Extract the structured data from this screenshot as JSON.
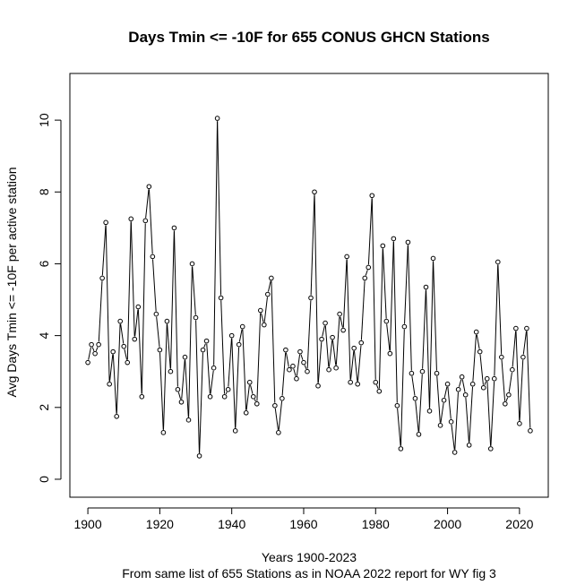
{
  "chart_data": {
    "type": "line",
    "title": "Days Tmin <= -10F for 655 CONUS GHCN Stations",
    "xlabel": "Years 1900-2023",
    "subtitle": "From same list of 655 Stations as in NOAA 2022 report for WY fig 3",
    "ylabel": "Avg Days Tmin <= -10F per active station",
    "xlim": [
      1895,
      2028
    ],
    "ylim": [
      -0.5,
      11.3
    ],
    "x_ticks": [
      1900,
      1920,
      1940,
      1960,
      1980,
      2000,
      2020
    ],
    "y_ticks": [
      0,
      2,
      4,
      6,
      8,
      10
    ],
    "x_tick_labels": [
      "1900",
      "1920",
      "1940",
      "1960",
      "1980",
      "2000",
      "2020"
    ],
    "y_tick_labels": [
      "0",
      "2",
      "4",
      "6",
      "8",
      "10"
    ],
    "marker": "open-circle",
    "series": [
      {
        "name": "Avg days",
        "start_year": 1900,
        "end_year": 2023,
        "values": [
          3.25,
          3.75,
          3.5,
          3.75,
          5.6,
          7.15,
          2.65,
          3.55,
          1.75,
          4.4,
          3.7,
          3.25,
          7.25,
          3.9,
          4.8,
          2.3,
          7.2,
          8.15,
          6.2,
          4.6,
          3.6,
          1.3,
          4.4,
          3.0,
          7.0,
          2.5,
          2.15,
          3.4,
          1.65,
          6.0,
          4.5,
          0.65,
          3.6,
          3.85,
          2.3,
          3.1,
          10.05,
          5.05,
          2.3,
          2.5,
          4.0,
          1.35,
          3.75,
          4.25,
          1.85,
          2.7,
          2.3,
          2.1,
          4.7,
          4.3,
          5.15,
          5.6,
          2.05,
          1.3,
          2.25,
          3.6,
          3.05,
          3.15,
          2.8,
          3.55,
          3.25,
          3.0,
          5.05,
          8.0,
          2.6,
          3.9,
          4.35,
          3.05,
          3.95,
          3.1,
          4.6,
          4.15,
          6.2,
          2.7,
          3.65,
          2.65,
          3.8,
          5.6,
          5.9,
          7.9,
          2.7,
          2.45,
          6.5,
          4.4,
          3.5,
          6.7,
          2.05,
          0.85,
          4.25,
          6.6,
          2.95,
          2.25,
          1.25,
          3.0,
          5.35,
          1.9,
          6.15,
          2.95,
          1.5,
          2.2,
          2.65,
          1.6,
          0.75,
          2.5,
          2.85,
          2.35,
          0.95,
          2.65,
          4.1,
          3.55,
          2.55,
          2.8,
          0.85,
          2.8,
          6.05,
          3.4,
          2.1,
          2.35,
          3.05,
          4.2,
          1.55,
          3.4,
          4.2,
          1.35
        ]
      }
    ]
  }
}
